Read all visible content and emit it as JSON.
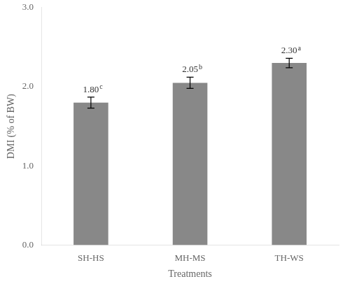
{
  "chart_data": {
    "type": "bar",
    "categories": [
      "SH-HS",
      "MH-MS",
      "TH-WS"
    ],
    "values": [
      1.8,
      2.05,
      2.3
    ],
    "value_labels": [
      "1.80",
      "2.05",
      "2.30"
    ],
    "superscripts": [
      "c",
      "b",
      "a"
    ],
    "errors": [
      0.07,
      0.07,
      0.06
    ],
    "color": "#888888",
    "xlabel": "Treatments",
    "ylabel": "DMI (% of BW)",
    "ylim": [
      0,
      3.0
    ],
    "yticks": [
      {
        "value": 0,
        "label": "0.0"
      },
      {
        "value": 1.0,
        "label": "1.0"
      },
      {
        "value": 2.0,
        "label": "2.0"
      },
      {
        "value": 3.0,
        "label": "3.0"
      }
    ],
    "grid": false,
    "data_labels": true
  }
}
